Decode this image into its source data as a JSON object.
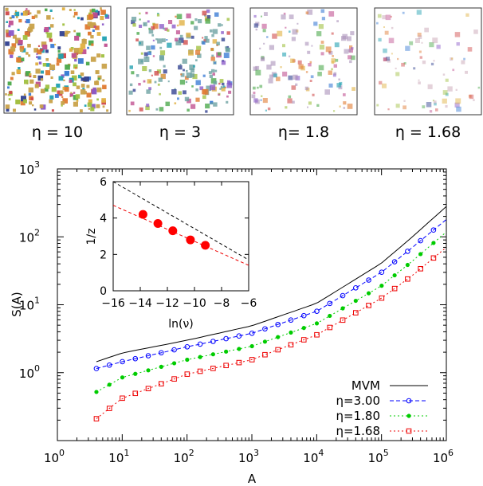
{
  "panels": [
    {
      "caption": "η = 10",
      "color": "#c9a24a",
      "density": 1.0
    },
    {
      "caption": "η = 3",
      "color": "#6aa0a0",
      "density": 0.72
    },
    {
      "caption": "η= 1.8",
      "color": "#a98fb8",
      "density": 0.4
    },
    {
      "caption": "η = 1.68",
      "color": "#c6a0b0",
      "density": 0.2
    }
  ],
  "chart_data": [
    {
      "type": "line",
      "scale": "log-log",
      "xlabel": "A",
      "ylabel": "S(A)",
      "xlim": [
        1,
        1000000
      ],
      "ylim": [
        0.1,
        1000
      ],
      "x_ticks": [
        {
          "value": 1,
          "base": "10",
          "exp": "0"
        },
        {
          "value": 10,
          "base": "10",
          "exp": "1"
        },
        {
          "value": 100,
          "base": "10",
          "exp": "2"
        },
        {
          "value": 1000,
          "base": "10",
          "exp": "3"
        },
        {
          "value": 10000,
          "base": "10",
          "exp": "4"
        },
        {
          "value": 100000,
          "base": "10",
          "exp": "5"
        },
        {
          "value": 1000000,
          "base": "10",
          "exp": "6"
        }
      ],
      "y_ticks": [
        {
          "value": 1,
          "base": "10",
          "exp": "0"
        },
        {
          "value": 10,
          "base": "10",
          "exp": "1"
        },
        {
          "value": 100,
          "base": "10",
          "exp": "2"
        },
        {
          "value": 1000,
          "base": "10",
          "exp": "3"
        }
      ],
      "legend_position": "bottom-right",
      "series": [
        {
          "name": "MVM",
          "color": "#000000",
          "style": "solid",
          "marker": "none",
          "x": [
            4,
            10,
            100,
            1000,
            10000,
            100000,
            300000,
            1000000
          ],
          "y": [
            1.45,
            1.95,
            3.0,
            4.9,
            10.5,
            41,
            100,
            280
          ]
        },
        {
          "name": "η=3.00",
          "color": "#0000ff",
          "style": "dashed",
          "marker": "circle",
          "x": [
            4,
            10,
            100,
            1000,
            10000,
            100000,
            300000,
            1000000
          ],
          "y": [
            1.15,
            1.45,
            2.4,
            3.8,
            8.0,
            30,
            70,
            180
          ]
        },
        {
          "name": "η=1.80",
          "color": "#00cc00",
          "style": "dotted",
          "marker": "dot",
          "x": [
            4,
            10,
            100,
            1000,
            10000,
            100000,
            300000,
            1000000
          ],
          "y": [
            0.52,
            0.85,
            1.55,
            2.45,
            5.3,
            19,
            44,
            118
          ]
        },
        {
          "name": "η=1.68",
          "color": "#ee0000",
          "style": "dotted",
          "marker": "square",
          "x": [
            4,
            10,
            100,
            1000,
            10000,
            100000,
            300000,
            1000000
          ],
          "y": [
            0.21,
            0.42,
            0.95,
            1.55,
            3.6,
            12.5,
            27,
            70
          ]
        }
      ]
    },
    {
      "type": "scatter",
      "xlabel": "ln(ν)",
      "ylabel": "1/z",
      "xlim": [
        -16,
        -6
      ],
      "ylim": [
        0,
        6
      ],
      "x_ticks": [
        -16,
        -14,
        -12,
        -10,
        -8,
        -6
      ],
      "x_tick_labels": [
        "−16",
        "−14",
        "−12",
        "−10",
        "−8",
        "−6"
      ],
      "y_ticks": [
        0,
        2,
        4,
        6
      ],
      "y_tick_labels": [
        "0",
        "2",
        "4",
        "6"
      ],
      "points": {
        "color": "#ff0000",
        "x": [
          -13.8,
          -12.7,
          -11.6,
          -10.3,
          -9.2
        ],
        "y": [
          4.2,
          3.7,
          3.3,
          2.8,
          2.5
        ]
      },
      "lines": [
        {
          "color": "#000000",
          "style": "dashed",
          "x": [
            -16,
            -6
          ],
          "y": [
            6.0,
            1.7
          ]
        },
        {
          "color": "#ee0000",
          "style": "dashed",
          "x": [
            -16,
            -6
          ],
          "y": [
            4.7,
            1.4
          ]
        }
      ]
    }
  ]
}
